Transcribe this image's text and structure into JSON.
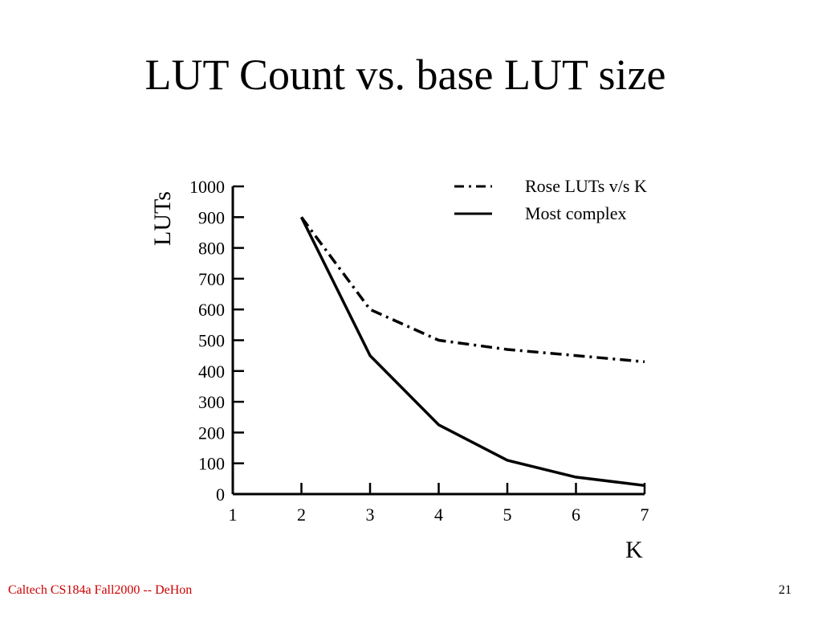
{
  "slide": {
    "title": "LUT Count vs. base LUT size",
    "footer": "Caltech CS184a Fall2000 -- DeHon",
    "page_number": "21"
  },
  "colors": {
    "footer_text": "#cc0000",
    "series_lines": "#000000"
  },
  "chart_data": {
    "type": "line",
    "xlabel": "K",
    "ylabel": "LUTs",
    "xlim": [
      1,
      7
    ],
    "ylim": [
      0,
      1000
    ],
    "x_ticks": [
      "1",
      "2",
      "3",
      "4",
      "5",
      "6",
      "7"
    ],
    "y_ticks": [
      "0",
      "100",
      "200",
      "300",
      "400",
      "500",
      "600",
      "700",
      "800",
      "900",
      "1000"
    ],
    "legend_position": "top-right",
    "series": [
      {
        "name": "Rose LUTs v/s K",
        "style": "dash-dot",
        "x": [
          2,
          3,
          4,
          5,
          6,
          7
        ],
        "values": [
          900,
          600,
          500,
          470,
          450,
          430
        ]
      },
      {
        "name": "Most complex",
        "style": "solid",
        "x": [
          2,
          3,
          4,
          5,
          6,
          7
        ],
        "values": [
          900,
          450,
          225,
          110,
          55,
          28
        ]
      }
    ]
  }
}
